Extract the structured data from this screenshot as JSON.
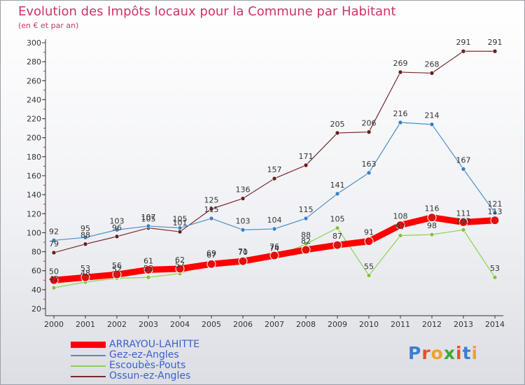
{
  "title": "Evolution des Impôts locaux pour la Commune par Habitant",
  "subtitle": "(en € et par an)",
  "brand": "Proxiti",
  "chart_data": {
    "type": "line",
    "categories": [
      "2000",
      "2001",
      "2002",
      "2003",
      "2004",
      "2005",
      "2006",
      "2007",
      "2008",
      "2009",
      "2010",
      "2011",
      "2012",
      "2013",
      "2014"
    ],
    "ylim": [
      20,
      300
    ],
    "yticks": [
      20,
      40,
      60,
      80,
      100,
      120,
      140,
      160,
      180,
      200,
      220,
      240,
      260,
      280,
      300
    ],
    "grid": false,
    "legend_position": "bottom-left",
    "series": [
      {
        "name": "ARRAYOU-LAHITTE",
        "color": "#ff0000",
        "values": [
          50,
          53,
          56,
          61,
          62,
          67,
          70,
          76,
          82,
          87,
          91,
          108,
          116,
          111,
          113
        ]
      },
      {
        "name": "Gez-ez-Angles",
        "color": "#4a90c8",
        "values": [
          92,
          95,
          103,
          107,
          105,
          115,
          103,
          104,
          115,
          141,
          163,
          216,
          214,
          167,
          121
        ]
      },
      {
        "name": "Escoubès-Pouts",
        "color": "#8fd14f",
        "values": [
          42,
          48,
          52,
          53,
          57,
          69,
          71,
          74,
          88,
          105,
          55,
          97,
          98,
          103,
          53
        ]
      },
      {
        "name": "Ossun-ez-Angles",
        "color": "#7a2a2a",
        "values": [
          79,
          88,
          96,
          105,
          101,
          125,
          136,
          157,
          171,
          205,
          206,
          269,
          268,
          291,
          291
        ]
      }
    ]
  }
}
